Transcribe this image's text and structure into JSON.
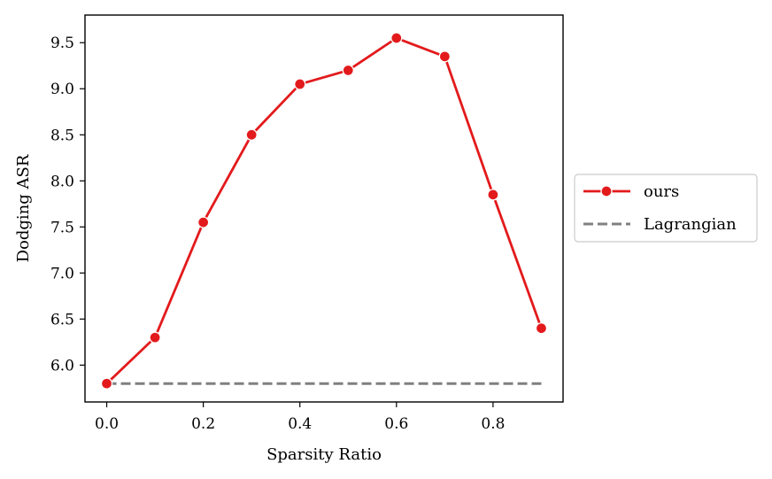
{
  "chart_data": {
    "type": "line",
    "title": "",
    "xlabel": "Sparsity Ratio",
    "ylabel": "Dodging ASR",
    "xlim": [
      -0.045,
      0.945
    ],
    "ylim": [
      5.6,
      9.8
    ],
    "xticks": [
      0.0,
      0.2,
      0.4,
      0.6,
      0.8
    ],
    "xtick_labels": [
      "0.0",
      "0.2",
      "0.4",
      "0.6",
      "0.8"
    ],
    "yticks": [
      6.0,
      6.5,
      7.0,
      7.5,
      8.0,
      8.5,
      9.0,
      9.5
    ],
    "ytick_labels": [
      "6.0",
      "6.5",
      "7.0",
      "7.5",
      "8.0",
      "8.5",
      "9.0",
      "9.5"
    ],
    "grid": false,
    "legend_position": "right-outside",
    "series": [
      {
        "name": "ours",
        "color": "#e31a1c",
        "style": "solid-with-markers",
        "x": [
          0.0,
          0.1,
          0.2,
          0.3,
          0.4,
          0.5,
          0.6,
          0.7,
          0.8,
          0.9
        ],
        "y": [
          5.8,
          6.3,
          7.55,
          8.5,
          9.05,
          9.2,
          9.55,
          9.35,
          7.85,
          6.4
        ]
      },
      {
        "name": "Lagrangian",
        "color": "#808080",
        "style": "dashed",
        "x": [
          0.0,
          0.9
        ],
        "y": [
          5.8,
          5.8
        ]
      }
    ]
  }
}
